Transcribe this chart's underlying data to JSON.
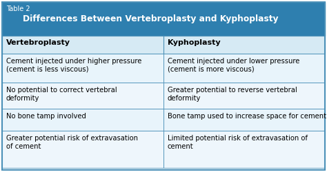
{
  "table_label": "Table 2",
  "title": "Differences Between Vertebroplasty and Kyphoplasty",
  "col1_header": "Vertebroplasty",
  "col2_header": "Kyphoplasty",
  "rows": [
    [
      "Cement injected under higher pressure\n(cement is less viscous)",
      "Cement injected under lower pressure\n(cement is more viscous)"
    ],
    [
      "No potential to correct vertebral\ndeformity",
      "Greater potential to reverse vertebral\ndeformity"
    ],
    [
      "No bone tamp involved",
      "Bone tamp used to increase space for cement"
    ],
    [
      "Greater potential risk of extravasation\nof cement",
      "Limited potential risk of extravasation of\ncement"
    ]
  ],
  "header_bg": "#2e7faf",
  "header_text_color": "#ffffff",
  "col_header_bg": "#d6eaf4",
  "row_bg_light": "#e8f4fb",
  "row_bg_white": "#eef6fc",
  "border_color": "#4a90b8",
  "fig_w": 4.74,
  "fig_h": 2.5,
  "dpi": 100
}
